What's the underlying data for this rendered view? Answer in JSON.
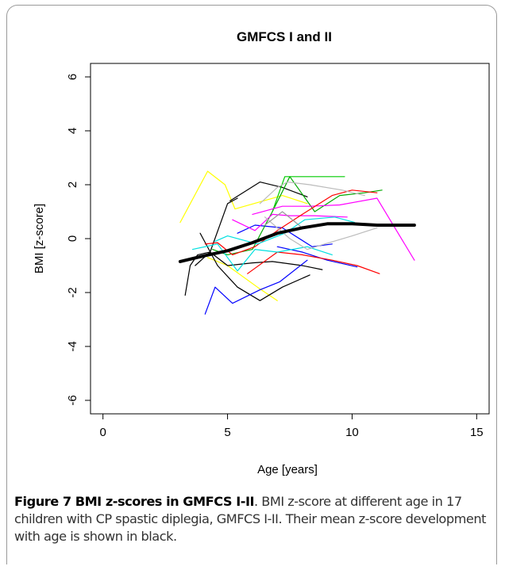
{
  "chart_data": {
    "type": "line",
    "title": "GMFCS I and II",
    "xlabel": "Age [years]",
    "ylabel": "BMI [z-score]",
    "xlim": [
      -0.5,
      15.5
    ],
    "ylim": [
      -6.5,
      6.5
    ],
    "x_ticks": [
      0,
      5,
      10,
      15
    ],
    "y_ticks": [
      -6,
      -4,
      -2,
      0,
      2,
      4,
      6
    ],
    "grid": false,
    "legend": "none",
    "series": [
      {
        "color": "#000000",
        "x": [
          3.1,
          4.0,
          5.0,
          6.0,
          7.0,
          8.0,
          9.0,
          10.0,
          11.0,
          12.0,
          12.5
        ],
        "y": [
          -0.85,
          -0.65,
          -0.45,
          -0.15,
          0.2,
          0.4,
          0.55,
          0.55,
          0.5,
          0.5,
          0.5
        ],
        "style": "mean"
      },
      {
        "color": "#ffff00",
        "x": [
          3.1,
          4.2,
          4.9,
          5.3,
          7.2,
          8.2
        ],
        "y": [
          0.6,
          2.5,
          2.0,
          1.1,
          1.6,
          1.3
        ]
      },
      {
        "color": "#ffff00",
        "x": [
          4.2,
          5.0,
          6.2,
          7.0
        ],
        "y": [
          -0.7,
          -1.0,
          -1.8,
          -2.3
        ]
      },
      {
        "color": "#000000",
        "x": [
          3.3,
          3.5,
          3.8,
          4.3,
          5.0,
          5.4
        ],
        "y": [
          -2.1,
          -1.0,
          -0.6,
          -0.5,
          1.3,
          1.5
        ]
      },
      {
        "color": "#000000",
        "x": [
          3.9,
          4.6,
          5.4,
          6.3,
          7.2,
          8.3
        ],
        "y": [
          0.2,
          -1.0,
          -1.8,
          -2.3,
          -1.8,
          -1.35
        ]
      },
      {
        "color": "#000000",
        "x": [
          5.1,
          6.3,
          7.2,
          8.2
        ],
        "y": [
          1.4,
          2.1,
          1.9,
          1.55
        ]
      },
      {
        "color": "#000000",
        "x": [
          3.7,
          4.3,
          5.0,
          6.0,
          6.8,
          8.0,
          8.8
        ],
        "y": [
          -1.0,
          -0.5,
          -1.0,
          -0.9,
          -0.85,
          -1.0,
          -1.15
        ]
      },
      {
        "color": "#0000ff",
        "x": [
          4.1,
          4.5,
          5.2,
          6.3,
          7.1,
          8.2
        ],
        "y": [
          -2.8,
          -1.8,
          -2.4,
          -1.9,
          -1.6,
          -0.8
        ]
      },
      {
        "color": "#0000ff",
        "x": [
          5.4,
          6.1,
          7.2,
          8.4,
          9.2
        ],
        "y": [
          0.2,
          0.5,
          0.4,
          -0.3,
          -0.2
        ]
      },
      {
        "color": "#0000ff",
        "x": [
          7.0,
          8.0,
          9.0,
          10.2
        ],
        "y": [
          -0.3,
          -0.5,
          -0.8,
          -1.05
        ]
      },
      {
        "color": "#00aa00",
        "x": [
          4.4,
          5.0,
          6.0,
          6.8,
          7.5,
          8.5,
          9.5,
          10.5,
          11.2
        ],
        "y": [
          -0.4,
          -0.6,
          -0.4,
          1.0,
          2.3,
          1.0,
          1.6,
          1.7,
          1.8
        ]
      },
      {
        "color": "#00cc00",
        "x": [
          6.8,
          7.3,
          8.4,
          9.7
        ],
        "y": [
          1.0,
          2.3,
          2.3,
          2.3
        ]
      },
      {
        "color": "#ff00ff",
        "x": [
          6.0,
          7.2,
          8.3,
          9.5,
          11.0,
          12.5
        ],
        "y": [
          0.9,
          1.2,
          1.2,
          1.25,
          1.5,
          -0.8
        ]
      },
      {
        "color": "#ff00ff",
        "x": [
          5.2,
          6.1,
          6.8,
          7.5,
          8.5,
          9.8
        ],
        "y": [
          0.7,
          0.3,
          0.9,
          0.85,
          0.85,
          0.8
        ]
      },
      {
        "color": "#ff0000",
        "x": [
          4.1,
          4.6,
          5.2,
          6.1,
          7.0,
          8.0,
          9.2,
          10.0,
          11.0
        ],
        "y": [
          -0.2,
          -0.15,
          -0.6,
          -0.3,
          0.3,
          0.9,
          1.6,
          1.8,
          1.7
        ]
      },
      {
        "color": "#ff0000",
        "x": [
          5.8,
          7.0,
          8.0,
          9.2,
          10.2,
          11.1
        ],
        "y": [
          -1.3,
          -0.5,
          -0.6,
          -0.8,
          -1.0,
          -1.3
        ]
      },
      {
        "color": "#00e0e0",
        "x": [
          3.6,
          4.6,
          5.4,
          6.1,
          7.0,
          8.2,
          9.2
        ],
        "y": [
          -0.4,
          -0.2,
          -1.2,
          -0.4,
          -0.5,
          -0.3,
          -0.6
        ]
      },
      {
        "color": "#00e0e0",
        "x": [
          4.5,
          5.0,
          6.2,
          7.3,
          8.1,
          9.3,
          10.1
        ],
        "y": [
          -0.1,
          0.1,
          -0.2,
          0.2,
          0.7,
          0.8,
          0.6
        ]
      },
      {
        "color": "#bbbbbb",
        "x": [
          6.3,
          7.0,
          7.4,
          8.3,
          9.6,
          10.5
        ],
        "y": [
          1.3,
          1.9,
          2.1,
          2.0,
          1.8,
          1.6
        ]
      },
      {
        "color": "#bbbbbb",
        "x": [
          6.5,
          7.5,
          8.2,
          8.9,
          10.0,
          11.0
        ],
        "y": [
          0.8,
          0.0,
          -0.4,
          -0.2,
          0.1,
          0.4
        ]
      },
      {
        "color": "#999999",
        "x": [
          6.5,
          7.2,
          8.0
        ],
        "y": [
          0.5,
          1.0,
          0.4
        ]
      }
    ]
  },
  "caption": {
    "label": "Figure 7",
    "bold_title": "BMI z-scores in GMFCS I-II",
    "text": ". BMI z-score at different age in 17 children with CP spastic diplegia, GMFCS I-II. Their mean z-score development with age is shown in black."
  }
}
